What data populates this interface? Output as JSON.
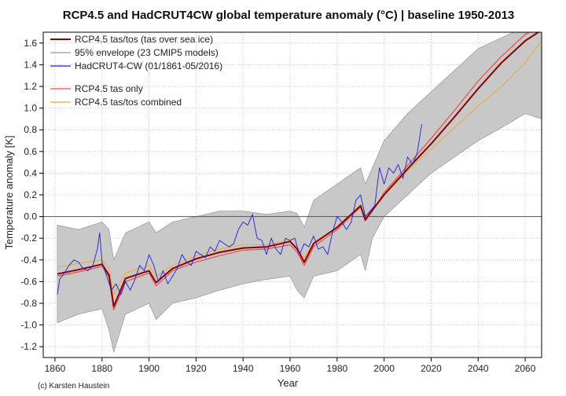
{
  "chart_data": {
    "type": "line",
    "title": "RCP4.5 and HadCRUT4CW global temperature anomaly (°C) | baseline 1950-2013",
    "xlabel": "Year",
    "ylabel": "Temperature anomaly [K]",
    "xlim": [
      1855,
      2067
    ],
    "ylim": [
      -1.3,
      1.7
    ],
    "x_ticks": [
      1860,
      1880,
      1900,
      1920,
      1940,
      1960,
      1980,
      2000,
      2020,
      2040,
      2060
    ],
    "y_ticks": [
      -1.2,
      -1.0,
      -0.8,
      -0.6,
      -0.4,
      -0.2,
      0.0,
      0.2,
      0.4,
      0.6,
      0.8,
      1.0,
      1.2,
      1.4,
      1.6
    ],
    "y_tick_labels": [
      "-1.2",
      "-1.0",
      "-0.8",
      "-0.6",
      "-0.4",
      "-0.2",
      "0.0",
      "0.2",
      "0.4",
      "0.6",
      "0.8",
      "1.0",
      "1.2",
      "1.4",
      "1.6"
    ],
    "grid": true,
    "legend_position": "top-left",
    "credit": "(c) Karsten Haustein",
    "legend": [
      {
        "label": "RCP4.5 tas/tos (tas over sea ice)",
        "color": "#8b0000"
      },
      {
        "label": "95% envelope (23 CMIP5 models)",
        "color": "#9a9a9a"
      },
      {
        "label": "HadCRUT4-CW (01/1861-05/2016)",
        "color": "#1f1fe0"
      },
      {
        "label": "RCP4.5 tas only",
        "color": "#ef4a4a"
      },
      {
        "label": "RCP4.5 tas/tos combined",
        "color": "#f0a830"
      }
    ],
    "series": [
      {
        "name": "95% envelope (23 CMIP5 models)",
        "kind": "band",
        "color": "#c8c8c8",
        "x": [
          1861,
          1870,
          1880,
          1883,
          1885,
          1890,
          1900,
          1903,
          1910,
          1920,
          1930,
          1940,
          1950,
          1960,
          1963,
          1966,
          1970,
          1980,
          1990,
          1992,
          1995,
          2000,
          2010,
          2020,
          2030,
          2040,
          2050,
          2060,
          2067
        ],
        "upper": [
          -0.08,
          -0.12,
          -0.05,
          -0.12,
          -0.4,
          -0.15,
          -0.05,
          -0.15,
          -0.05,
          0.0,
          0.05,
          0.05,
          0.02,
          0.05,
          0.03,
          -0.1,
          0.15,
          0.3,
          0.45,
          0.3,
          0.45,
          0.7,
          0.95,
          1.15,
          1.35,
          1.55,
          1.65,
          1.75,
          1.8
        ],
        "lower": [
          -0.98,
          -0.9,
          -0.85,
          -1.05,
          -1.25,
          -0.9,
          -0.8,
          -0.95,
          -0.8,
          -0.75,
          -0.68,
          -0.62,
          -0.58,
          -0.55,
          -0.68,
          -0.75,
          -0.55,
          -0.5,
          -0.35,
          -0.5,
          -0.2,
          0.0,
          0.2,
          0.4,
          0.55,
          0.7,
          0.82,
          0.95,
          0.9
        ]
      },
      {
        "name": "RCP4.5 tas/tos combined",
        "color": "#f0a830",
        "x": [
          1861,
          1870,
          1880,
          1883,
          1885,
          1890,
          1900,
          1903,
          1910,
          1920,
          1930,
          1940,
          1950,
          1960,
          1963,
          1966,
          1970,
          1980,
          1990,
          1992,
          1995,
          2000,
          2010,
          2020,
          2030,
          2040,
          2050,
          2060,
          2067
        ],
        "y": [
          -0.47,
          -0.43,
          -0.4,
          -0.48,
          -0.72,
          -0.52,
          -0.45,
          -0.55,
          -0.45,
          -0.36,
          -0.3,
          -0.26,
          -0.26,
          -0.22,
          -0.28,
          -0.38,
          -0.24,
          -0.1,
          0.08,
          -0.03,
          0.05,
          0.2,
          0.42,
          0.62,
          0.82,
          1.02,
          1.2,
          1.42,
          1.62
        ]
      },
      {
        "name": "RCP4.5 tas only",
        "color": "#ef4a4a",
        "x": [
          1861,
          1870,
          1880,
          1883,
          1885,
          1890,
          1900,
          1903,
          1910,
          1920,
          1930,
          1940,
          1950,
          1960,
          1963,
          1966,
          1970,
          1980,
          1990,
          1992,
          1995,
          2000,
          2010,
          2020,
          2030,
          2040,
          2050,
          2060,
          2067
        ],
        "y": [
          -0.55,
          -0.51,
          -0.46,
          -0.56,
          -0.86,
          -0.6,
          -0.52,
          -0.64,
          -0.5,
          -0.42,
          -0.36,
          -0.31,
          -0.3,
          -0.26,
          -0.33,
          -0.45,
          -0.28,
          -0.12,
          0.09,
          -0.04,
          0.05,
          0.22,
          0.47,
          0.72,
          0.98,
          1.25,
          1.48,
          1.68,
          1.76
        ]
      },
      {
        "name": "RCP4.5 tas/tos (tas over sea ice)",
        "color": "#8b0000",
        "x": [
          1861,
          1870,
          1880,
          1883,
          1885,
          1890,
          1900,
          1903,
          1910,
          1920,
          1930,
          1940,
          1950,
          1960,
          1963,
          1966,
          1970,
          1980,
          1990,
          1992,
          1995,
          2000,
          2010,
          2020,
          2030,
          2040,
          2050,
          2060,
          2067
        ],
        "y": [
          -0.53,
          -0.49,
          -0.44,
          -0.54,
          -0.83,
          -0.57,
          -0.5,
          -0.61,
          -0.48,
          -0.39,
          -0.33,
          -0.29,
          -0.28,
          -0.23,
          -0.3,
          -0.42,
          -0.25,
          -0.1,
          0.1,
          -0.03,
          0.06,
          0.2,
          0.44,
          0.67,
          0.92,
          1.18,
          1.42,
          1.62,
          1.72
        ]
      },
      {
        "name": "HadCRUT4-CW (01/1861-05/2016)",
        "color": "#1f1fe0",
        "x": [
          1861,
          1862,
          1864,
          1866,
          1868,
          1870,
          1872,
          1874,
          1876,
          1878,
          1879,
          1880,
          1882,
          1884,
          1886,
          1888,
          1890,
          1892,
          1894,
          1896,
          1898,
          1900,
          1902,
          1904,
          1906,
          1908,
          1910,
          1912,
          1914,
          1916,
          1918,
          1920,
          1922,
          1924,
          1926,
          1928,
          1930,
          1932,
          1934,
          1936,
          1938,
          1940,
          1942,
          1944,
          1946,
          1948,
          1950,
          1952,
          1954,
          1956,
          1958,
          1960,
          1962,
          1964,
          1966,
          1968,
          1970,
          1972,
          1974,
          1976,
          1978,
          1980,
          1982,
          1984,
          1986,
          1988,
          1990,
          1992,
          1994,
          1996,
          1998,
          2000,
          2002,
          2004,
          2006,
          2008,
          2010,
          2012,
          2014,
          2016
        ],
        "y": [
          -0.72,
          -0.58,
          -0.52,
          -0.45,
          -0.4,
          -0.42,
          -0.48,
          -0.5,
          -0.46,
          -0.3,
          -0.15,
          -0.42,
          -0.55,
          -0.68,
          -0.62,
          -0.72,
          -0.6,
          -0.68,
          -0.58,
          -0.45,
          -0.5,
          -0.35,
          -0.45,
          -0.6,
          -0.5,
          -0.62,
          -0.55,
          -0.48,
          -0.35,
          -0.42,
          -0.45,
          -0.32,
          -0.35,
          -0.38,
          -0.28,
          -0.32,
          -0.22,
          -0.25,
          -0.28,
          -0.25,
          -0.12,
          -0.05,
          -0.08,
          0.02,
          -0.2,
          -0.22,
          -0.35,
          -0.2,
          -0.3,
          -0.35,
          -0.2,
          -0.22,
          -0.2,
          -0.35,
          -0.25,
          -0.28,
          -0.18,
          -0.3,
          -0.28,
          -0.35,
          -0.15,
          0.0,
          -0.05,
          -0.12,
          -0.05,
          0.15,
          0.2,
          0.0,
          0.05,
          0.1,
          0.45,
          0.3,
          0.45,
          0.4,
          0.48,
          0.35,
          0.55,
          0.48,
          0.58,
          0.85
        ]
      }
    ]
  }
}
